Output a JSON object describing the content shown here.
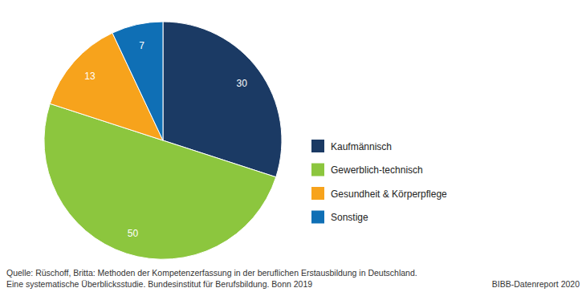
{
  "chart_data": {
    "type": "pie",
    "categories": [
      "Kaufmännisch",
      "Gewerblich-technisch",
      "Gesundheit & Körperpflege",
      "Sonstige"
    ],
    "values": [
      30,
      50,
      13,
      7
    ],
    "colors": [
      "#1b3a64",
      "#8cc63e",
      "#f7a31c",
      "#0f6fb5"
    ],
    "data_labels": true,
    "legend": "right",
    "annotations": [
      "Quelle: Rüschoff, Britta: Methoden der Kompetenzerfassung in der beruflichen Erstausbildung in Deutschland.",
      "Eine systematische Überblicksstudie. Bundesinstitut für Berufsbildung. Bonn 2019",
      "BIBB-Datenreport 2020"
    ]
  }
}
